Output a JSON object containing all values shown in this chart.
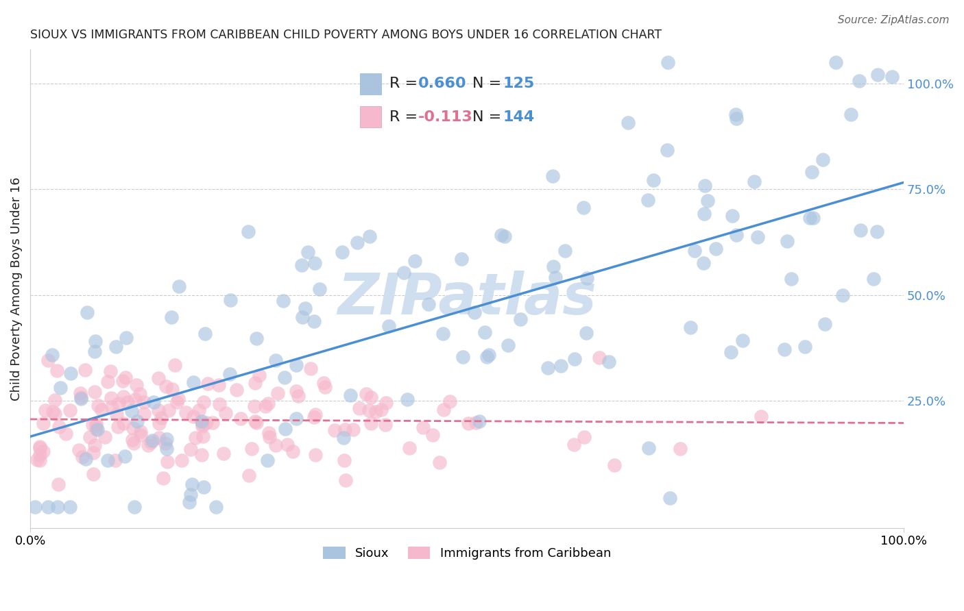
{
  "title": "SIOUX VS IMMIGRANTS FROM CARIBBEAN CHILD POVERTY AMONG BOYS UNDER 16 CORRELATION CHART",
  "source": "Source: ZipAtlas.com",
  "ylabel": "Child Poverty Among Boys Under 16",
  "ytick_labels": [
    "25.0%",
    "50.0%",
    "75.0%",
    "100.0%"
  ],
  "ytick_positions": [
    0.25,
    0.5,
    0.75,
    1.0
  ],
  "bottom_legend": [
    "Sioux",
    "Immigrants from Caribbean"
  ],
  "sioux_color": "#aac4e0",
  "caribbean_color": "#f5b8cc",
  "sioux_line_color": "#4a8fd4",
  "caribbean_line_color": "#e07090",
  "background_color": "#ffffff",
  "watermark": "ZIPatlas",
  "watermark_color": "#d0dff0",
  "R_sioux": 0.66,
  "N_sioux": 125,
  "R_caribbean": -0.113,
  "N_caribbean": 144,
  "legend_R_color": "#4a8fd4",
  "legend_N_color": "#222222",
  "xlim": [
    0.0,
    1.0
  ],
  "ylim": [
    -0.05,
    1.08
  ],
  "grid_color": "#cccccc",
  "title_color": "#222222",
  "sioux_seed": 42,
  "caribbean_seed": 7
}
